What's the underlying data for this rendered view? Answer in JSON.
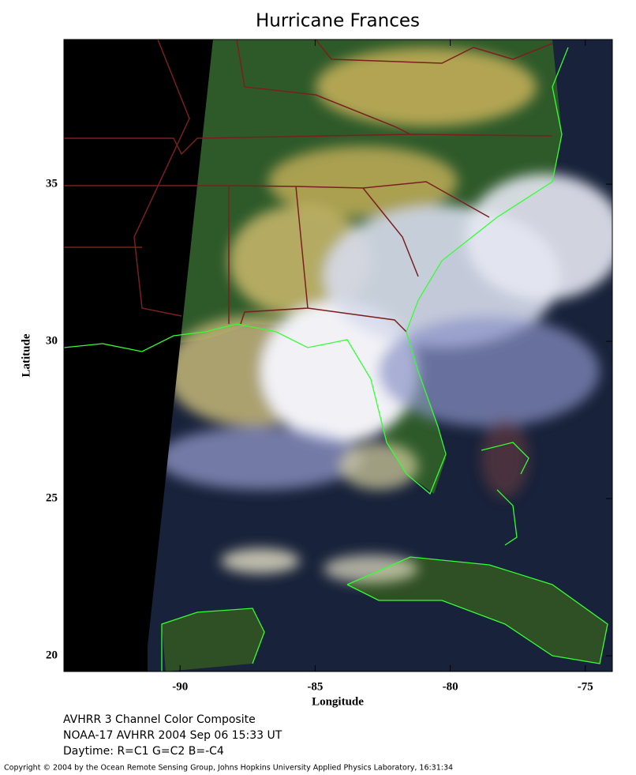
{
  "chart_data": {
    "type": "map",
    "title": "Hurricane Frances",
    "xlabel": "Longitude",
    "ylabel": "Latitude",
    "xlim": [
      -94.3,
      -74
    ],
    "ylim": [
      19.5,
      39.6
    ],
    "xticks": [
      -90,
      -85,
      -80,
      -75
    ],
    "yticks": [
      20,
      25,
      30,
      35
    ]
  },
  "caption": [
    "AVHRR 3 Channel Color Composite",
    "NOAA-17 AVHRR 2004 Sep 06 15:33 UT",
    "Daytime: R=C1 G=C2 B=-C4"
  ],
  "copyright": "Copyright © 2004 by the Ocean Remote Sensing Group, Johns Hopkins University Applied Physics Laboratory, 16:31:34"
}
